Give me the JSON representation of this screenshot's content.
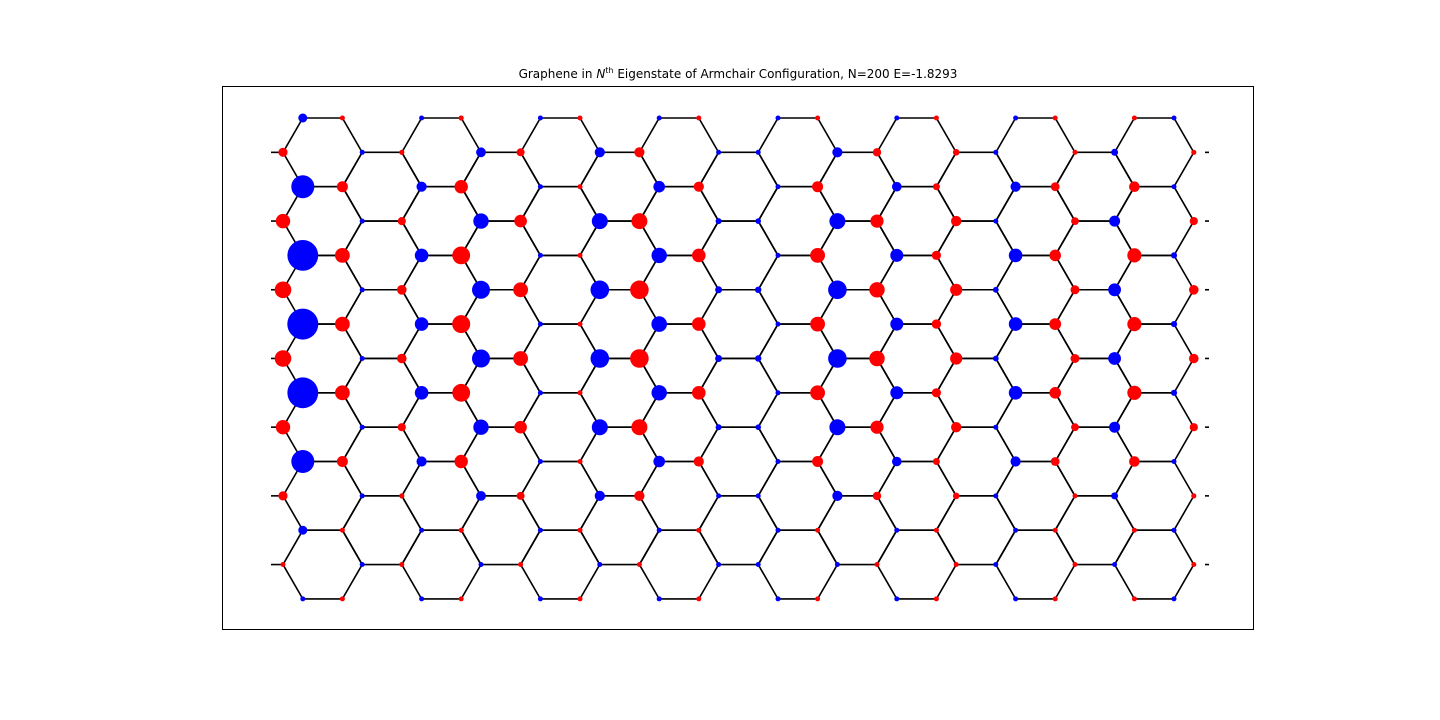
{
  "figure": {
    "title_prefix": "Graphene in ",
    "title_sym": "N",
    "title_sup": "th",
    "title_suffix": " Eigenstate of Armchair Configuration, N=200 E=-1.8293"
  },
  "chart_data": {
    "type": "scatter",
    "title": "Graphene in N^th Eigenstate of Armchair Configuration, N=200 E=-1.8293",
    "description_of_encoding": null,
    "colors": {
      "positive": "#ff0000",
      "negative": "#0000ff",
      "bonds": "#000000"
    },
    "grid": false,
    "lattice": {
      "configuration": "armchair",
      "hexagon_columns": 16,
      "hexagon_rows": 7,
      "atoms_per_column": 15
    },
    "wavefunction": {
      "column_amplitude": [
        0.52,
        -1.0,
        0.48,
        -0.06,
        0.3,
        -0.44,
        0.58,
        -0.56,
        0.46,
        -0.1,
        0.12,
        -0.58,
        0.58,
        -0.5,
        0.44,
        -0.22,
        -0.2,
        -0.05,
        0.48,
        -0.58,
        0.48,
        -0.42,
        0.3,
        0.38,
        -0.18,
        -0.44,
        0.38,
        0.28,
        -0.4,
        0.46,
        -0.2,
        0.3
      ],
      "row_profile": [
        0.28,
        0.55,
        0.72,
        0.86,
        0.96,
        1.0,
        0.97,
        1.0,
        0.96,
        0.86,
        0.72,
        0.55,
        0.28,
        0.18,
        0.12
      ]
    }
  }
}
